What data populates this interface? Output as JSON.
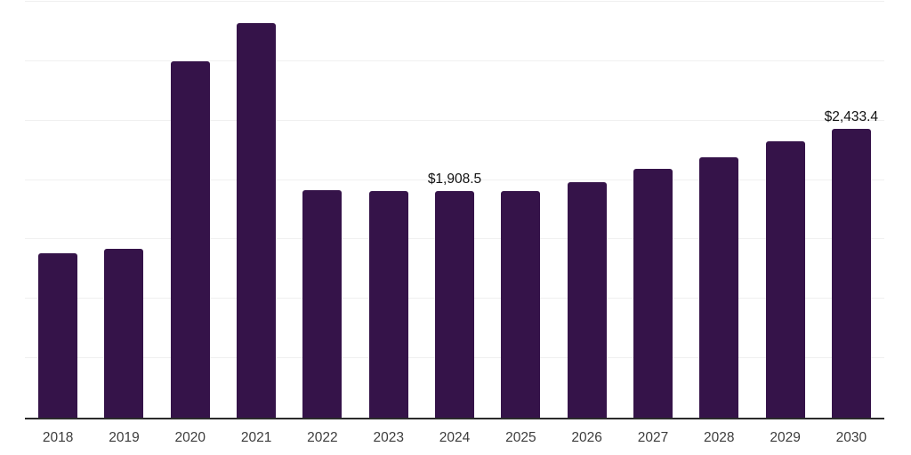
{
  "chart_data": {
    "type": "bar",
    "categories": [
      "2018",
      "2019",
      "2020",
      "2021",
      "2022",
      "2023",
      "2024",
      "2025",
      "2026",
      "2027",
      "2028",
      "2029",
      "2030"
    ],
    "values": [
      1382,
      1423,
      2996,
      3318,
      1917,
      1906,
      1908.5,
      1910,
      1981,
      2093,
      2194,
      2325,
      2433.4
    ],
    "data_labels": [
      "",
      "",
      "",
      "",
      "",
      "",
      "$1,908.5",
      "",
      "",
      "",
      "",
      "",
      "$2,433.4"
    ],
    "title": "",
    "xlabel": "",
    "ylabel": "",
    "ylim": [
      0,
      3500
    ],
    "gridline_step": 500,
    "grid": true,
    "legend": false,
    "bar_color": "#351349"
  },
  "style": {
    "background": "#ffffff",
    "bar_color": "#351349",
    "grid_color": "#f0f0f0",
    "axis_color": "#2b2b2b",
    "tick_label_color": "#3d3d3d",
    "data_label_color": "#111111"
  }
}
